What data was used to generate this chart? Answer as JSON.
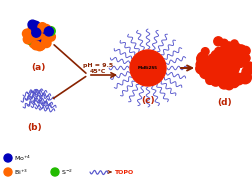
{
  "bg_color": "#ffffff",
  "panel_labels": [
    "(a)",
    "(b)",
    "(c)",
    "(d)"
  ],
  "panel_label_color": "#bb2200",
  "arrow_color": "#882200",
  "condition_text": "pH = 9.5\n45°C",
  "micelle_label": "MoBi2S5",
  "sphere_colors_a": {
    "blue": "#0000bb",
    "orange": "#ff6600",
    "green": "#22bb00"
  },
  "red_color": "#ee2200",
  "blue_wavy_color": "#5555cc",
  "legend_blue": "#0000bb",
  "legend_orange": "#ff6600",
  "legend_green": "#22bb00"
}
